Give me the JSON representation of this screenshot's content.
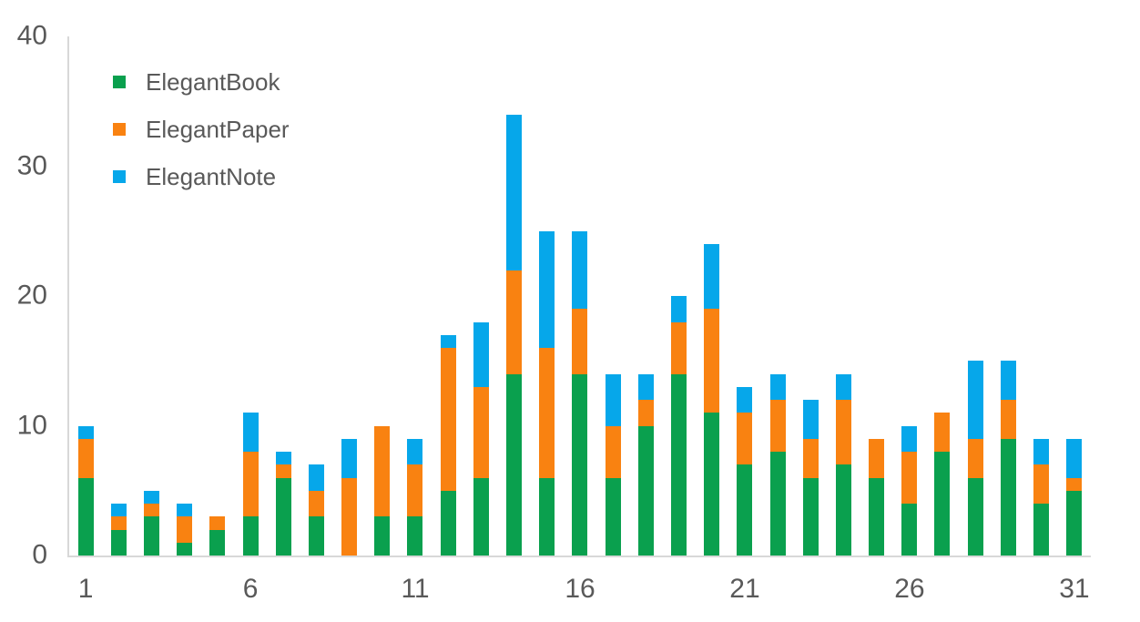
{
  "chart_data": {
    "type": "bar",
    "stacked": true,
    "categories": [
      1,
      2,
      3,
      4,
      5,
      6,
      7,
      8,
      9,
      10,
      11,
      12,
      13,
      14,
      15,
      16,
      17,
      18,
      19,
      20,
      21,
      22,
      23,
      24,
      25,
      26,
      27,
      28,
      29,
      30,
      31
    ],
    "series": [
      {
        "name": "ElegantBook",
        "color": "#0AA04E",
        "values": [
          6,
          2,
          3,
          1,
          2,
          3,
          6,
          3,
          0,
          3,
          3,
          5,
          6,
          14,
          6,
          14,
          6,
          10,
          14,
          11,
          7,
          8,
          6,
          7,
          6,
          4,
          8,
          6,
          9,
          4,
          5
        ]
      },
      {
        "name": "ElegantPaper",
        "color": "#F98211",
        "values": [
          3,
          1,
          1,
          2,
          1,
          5,
          1,
          2,
          6,
          7,
          4,
          11,
          7,
          8,
          10,
          5,
          4,
          2,
          4,
          8,
          4,
          4,
          3,
          5,
          3,
          4,
          3,
          3,
          3,
          3,
          1
        ]
      },
      {
        "name": "ElegantNote",
        "color": "#06A7EA",
        "values": [
          1,
          1,
          1,
          1,
          0,
          3,
          1,
          2,
          3,
          0,
          2,
          1,
          5,
          12,
          9,
          6,
          4,
          2,
          2,
          5,
          2,
          2,
          3,
          2,
          0,
          2,
          0,
          6,
          3,
          2,
          3
        ]
      }
    ],
    "ylim": [
      0,
      40
    ],
    "yticks": [
      0,
      10,
      20,
      30,
      40
    ],
    "xticks": [
      1,
      6,
      11,
      16,
      21,
      26,
      31
    ],
    "grid": false,
    "legend_position": "top-left"
  },
  "colors": {
    "axis_line": "#D8D8D8",
    "tick_text": "#595959",
    "background": "#FFFFFF"
  }
}
